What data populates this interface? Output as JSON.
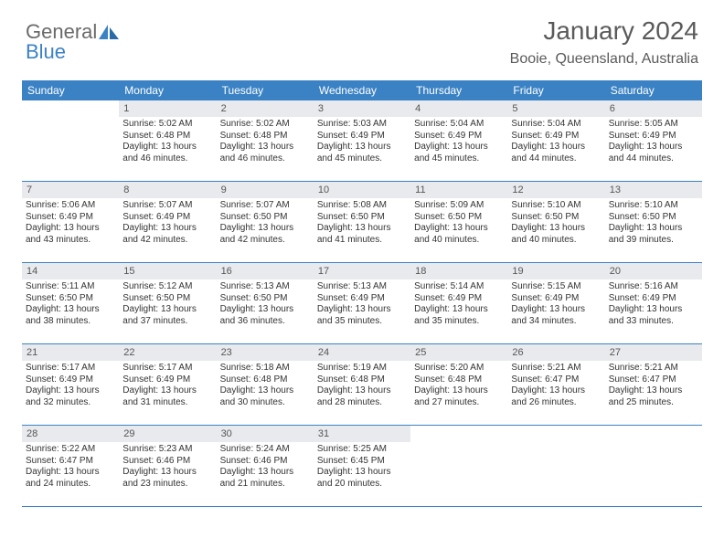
{
  "logo": {
    "part1": "General",
    "part2": "Blue"
  },
  "header": {
    "title": "January 2024",
    "location": "Booie, Queensland, Australia"
  },
  "colors": {
    "header_bg": "#3b82c4",
    "header_text": "#ffffff",
    "daynum_bg": "#e8eaed",
    "daynum_text": "#555555",
    "cell_text": "#333333",
    "rule": "#3b82c4",
    "logo_gray": "#6a6a6a",
    "logo_blue": "#3b82c4",
    "page_bg": "#ffffff"
  },
  "typography": {
    "title_fontsize": 28,
    "location_fontsize": 16,
    "dayheader_fontsize": 12,
    "daynum_fontsize": 11,
    "cell_fontsize": 10
  },
  "layout": {
    "columns": 7,
    "rows": 5,
    "start_offset": 1
  },
  "day_names": [
    "Sunday",
    "Monday",
    "Tuesday",
    "Wednesday",
    "Thursday",
    "Friday",
    "Saturday"
  ],
  "days": [
    {
      "n": "1",
      "sunrise": "5:02 AM",
      "sunset": "6:48 PM",
      "dl": "13 hours and 46 minutes."
    },
    {
      "n": "2",
      "sunrise": "5:02 AM",
      "sunset": "6:48 PM",
      "dl": "13 hours and 46 minutes."
    },
    {
      "n": "3",
      "sunrise": "5:03 AM",
      "sunset": "6:49 PM",
      "dl": "13 hours and 45 minutes."
    },
    {
      "n": "4",
      "sunrise": "5:04 AM",
      "sunset": "6:49 PM",
      "dl": "13 hours and 45 minutes."
    },
    {
      "n": "5",
      "sunrise": "5:04 AM",
      "sunset": "6:49 PM",
      "dl": "13 hours and 44 minutes."
    },
    {
      "n": "6",
      "sunrise": "5:05 AM",
      "sunset": "6:49 PM",
      "dl": "13 hours and 44 minutes."
    },
    {
      "n": "7",
      "sunrise": "5:06 AM",
      "sunset": "6:49 PM",
      "dl": "13 hours and 43 minutes."
    },
    {
      "n": "8",
      "sunrise": "5:07 AM",
      "sunset": "6:49 PM",
      "dl": "13 hours and 42 minutes."
    },
    {
      "n": "9",
      "sunrise": "5:07 AM",
      "sunset": "6:50 PM",
      "dl": "13 hours and 42 minutes."
    },
    {
      "n": "10",
      "sunrise": "5:08 AM",
      "sunset": "6:50 PM",
      "dl": "13 hours and 41 minutes."
    },
    {
      "n": "11",
      "sunrise": "5:09 AM",
      "sunset": "6:50 PM",
      "dl": "13 hours and 40 minutes."
    },
    {
      "n": "12",
      "sunrise": "5:10 AM",
      "sunset": "6:50 PM",
      "dl": "13 hours and 40 minutes."
    },
    {
      "n": "13",
      "sunrise": "5:10 AM",
      "sunset": "6:50 PM",
      "dl": "13 hours and 39 minutes."
    },
    {
      "n": "14",
      "sunrise": "5:11 AM",
      "sunset": "6:50 PM",
      "dl": "13 hours and 38 minutes."
    },
    {
      "n": "15",
      "sunrise": "5:12 AM",
      "sunset": "6:50 PM",
      "dl": "13 hours and 37 minutes."
    },
    {
      "n": "16",
      "sunrise": "5:13 AM",
      "sunset": "6:50 PM",
      "dl": "13 hours and 36 minutes."
    },
    {
      "n": "17",
      "sunrise": "5:13 AM",
      "sunset": "6:49 PM",
      "dl": "13 hours and 35 minutes."
    },
    {
      "n": "18",
      "sunrise": "5:14 AM",
      "sunset": "6:49 PM",
      "dl": "13 hours and 35 minutes."
    },
    {
      "n": "19",
      "sunrise": "5:15 AM",
      "sunset": "6:49 PM",
      "dl": "13 hours and 34 minutes."
    },
    {
      "n": "20",
      "sunrise": "5:16 AM",
      "sunset": "6:49 PM",
      "dl": "13 hours and 33 minutes."
    },
    {
      "n": "21",
      "sunrise": "5:17 AM",
      "sunset": "6:49 PM",
      "dl": "13 hours and 32 minutes."
    },
    {
      "n": "22",
      "sunrise": "5:17 AM",
      "sunset": "6:49 PM",
      "dl": "13 hours and 31 minutes."
    },
    {
      "n": "23",
      "sunrise": "5:18 AM",
      "sunset": "6:48 PM",
      "dl": "13 hours and 30 minutes."
    },
    {
      "n": "24",
      "sunrise": "5:19 AM",
      "sunset": "6:48 PM",
      "dl": "13 hours and 28 minutes."
    },
    {
      "n": "25",
      "sunrise": "5:20 AM",
      "sunset": "6:48 PM",
      "dl": "13 hours and 27 minutes."
    },
    {
      "n": "26",
      "sunrise": "5:21 AM",
      "sunset": "6:47 PM",
      "dl": "13 hours and 26 minutes."
    },
    {
      "n": "27",
      "sunrise": "5:21 AM",
      "sunset": "6:47 PM",
      "dl": "13 hours and 25 minutes."
    },
    {
      "n": "28",
      "sunrise": "5:22 AM",
      "sunset": "6:47 PM",
      "dl": "13 hours and 24 minutes."
    },
    {
      "n": "29",
      "sunrise": "5:23 AM",
      "sunset": "6:46 PM",
      "dl": "13 hours and 23 minutes."
    },
    {
      "n": "30",
      "sunrise": "5:24 AM",
      "sunset": "6:46 PM",
      "dl": "13 hours and 21 minutes."
    },
    {
      "n": "31",
      "sunrise": "5:25 AM",
      "sunset": "6:45 PM",
      "dl": "13 hours and 20 minutes."
    }
  ],
  "labels": {
    "sunrise": "Sunrise:",
    "sunset": "Sunset:",
    "daylight": "Daylight:"
  }
}
